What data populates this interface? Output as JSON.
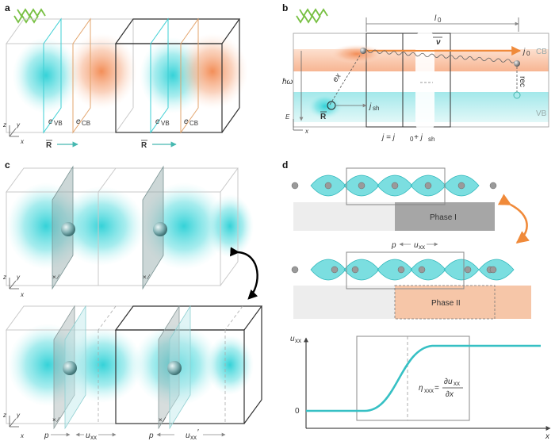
{
  "panels": {
    "a": {
      "label": "a",
      "axes": {
        "z": "z",
        "y": "y",
        "x": "x"
      },
      "labels": [
        "e",
        "e",
        "e",
        "e"
      ],
      "label_subscripts": [
        "VB",
        "CB",
        "VB",
        "CB"
      ],
      "vectors": [
        "R",
        "R"
      ]
    },
    "b": {
      "label": "b",
      "axes": {
        "e": "E",
        "x": "x"
      },
      "length": "l",
      "length_sub": "0",
      "nu": "ν",
      "j0": "j",
      "j0_sub": "0",
      "cb": "CB",
      "vb": "VB",
      "hw": "ħω",
      "ex": "ex",
      "rec": "rec",
      "R": "R",
      "jsh": "j",
      "jsh_sub": "sh",
      "equation": "j = j",
      "equation_sub0": "0",
      "equation_plus": " + j",
      "equation_sub1": "sh"
    },
    "c": {
      "label": "c",
      "axes": {
        "z": "z",
        "y": "y",
        "x": "x"
      },
      "p": "p",
      "uxx": "u",
      "uxx_sub": "xx",
      "uxx_prime": "u",
      "uxx_prime_sub": "xx",
      "prime": "′"
    },
    "d": {
      "label": "d",
      "phase1": "Phase I",
      "phase2": "Phase II",
      "p": "p",
      "uxx": "u",
      "uxx_sub": "xx",
      "graph_ylabel": "u",
      "graph_ylabel_sub": "xx",
      "graph_xlabel": "x",
      "zero": "0",
      "eta": "η",
      "eta_sub": "xxx",
      "eta_eq": " = ",
      "frac_top": "∂u",
      "frac_top_sub": "xx",
      "frac_bottom": "∂x"
    }
  },
  "colors": {
    "cyan": "#3ecfd4",
    "orange": "#f0956a",
    "gray_box": "#9c9c9c",
    "phase1": "#a6a6a6",
    "phase2": "#f6c6a8",
    "curve": "#36c0c4",
    "wavy": "#78c043"
  }
}
